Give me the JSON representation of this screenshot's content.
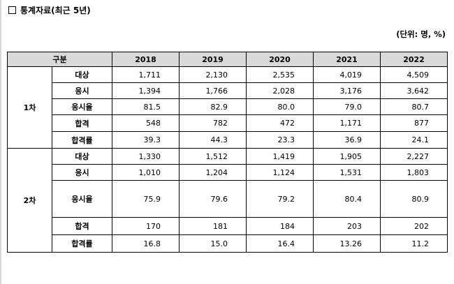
{
  "heading": "통계자료(최근 5년)",
  "unit": "(단위: 명, %)",
  "table": {
    "corner": "구분",
    "years": [
      "2018",
      "2019",
      "2020",
      "2021",
      "2022"
    ],
    "groups": [
      {
        "name": "1차",
        "rows": [
          {
            "label": "대상",
            "values": [
              "1,711",
              "2,130",
              "2,535",
              "4,019",
              "4,509"
            ]
          },
          {
            "label": "응시",
            "values": [
              "1,394",
              "1,766",
              "2,028",
              "3,176",
              "3,642"
            ]
          },
          {
            "label": "응시율",
            "values": [
              "81.5",
              "82.9",
              "80.0",
              "79.0",
              "80.7"
            ]
          },
          {
            "label": "합격",
            "values": [
              "548",
              "782",
              "472",
              "1,171",
              "877"
            ]
          },
          {
            "label": "합격률",
            "values": [
              "39.3",
              "44.3",
              "23.3",
              "36.9",
              "24.1"
            ]
          }
        ]
      },
      {
        "name": "2차",
        "rows": [
          {
            "label": "대상",
            "values": [
              "1,330",
              "1,512",
              "1,419",
              "1,905",
              "2,227"
            ]
          },
          {
            "label": "응시",
            "values": [
              "1,010",
              "1,204",
              "1,124",
              "1,531",
              "1,803"
            ]
          },
          {
            "label": "응시율",
            "values": [
              "75.9",
              "79.6",
              "79.2",
              "80.4",
              "80.9"
            ]
          },
          {
            "label": "합격",
            "values": [
              "170",
              "181",
              "184",
              "203",
              "202"
            ]
          },
          {
            "label": "합격률",
            "values": [
              "16.8",
              "15.0",
              "16.4",
              "13.26",
              "11.2"
            ]
          }
        ]
      }
    ]
  }
}
